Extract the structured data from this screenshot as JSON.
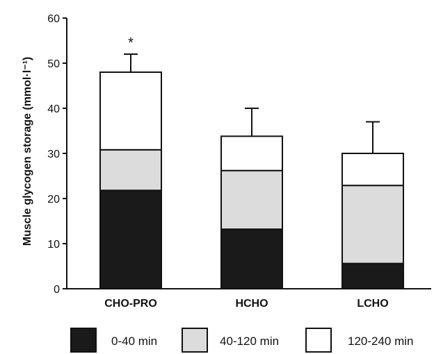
{
  "chart_data": {
    "type": "bar",
    "stacked": true,
    "categories": [
      "CHO-PRO",
      "HCHO",
      "LCHO"
    ],
    "series": [
      {
        "name": "0-40 min",
        "values": [
          21.8,
          13.2,
          5.6
        ],
        "color": "#1a1a1a"
      },
      {
        "name": "40-120 min",
        "values": [
          9.0,
          13.0,
          17.3
        ],
        "color": "#dcdcdc"
      },
      {
        "name": "120-240 min",
        "values": [
          17.2,
          7.6,
          7.1
        ],
        "color": "#ffffff"
      }
    ],
    "totals": [
      48.0,
      33.8,
      30.0
    ],
    "error_upper": [
      52,
      40,
      37
    ],
    "annotations": [
      {
        "category": "CHO-PRO",
        "text": "*"
      }
    ],
    "ylabel": "Muscle glycogen storage (mmol·l⁻¹)",
    "xlabel": "",
    "ylim": [
      0,
      60
    ],
    "yticks": [
      0,
      10,
      20,
      30,
      40,
      50,
      60
    ],
    "grid": false,
    "legend_position": "bottom"
  }
}
